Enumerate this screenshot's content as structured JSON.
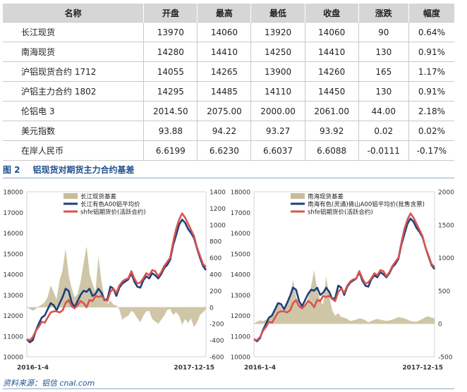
{
  "table": {
    "headers": [
      "名称",
      "开盘",
      "最高",
      "最低",
      "收盘",
      "涨跌",
      "幅度"
    ],
    "rows": [
      [
        "长江现货",
        "13970",
        "14060",
        "13920",
        "14060",
        "90",
        "0.64%"
      ],
      [
        "南海现货",
        "14280",
        "14410",
        "14250",
        "14410",
        "130",
        "0.91%"
      ],
      [
        "沪铝现货合约 1712",
        "14055",
        "14265",
        "13900",
        "14260",
        "165",
        "1.17%"
      ],
      [
        "沪铝主力合约 1802",
        "14295",
        "14485",
        "14110",
        "14450",
        "130",
        "0.91%"
      ],
      [
        "伦铝电 3",
        "2014.50",
        "2075.00",
        "2000.00",
        "2061.00",
        "44.00",
        "2.18%"
      ],
      [
        "美元指数",
        "93.88",
        "94.22",
        "93.27",
        "93.92",
        "0.02",
        "0.02%"
      ],
      [
        "在岸人民币",
        "6.6199",
        "6.6230",
        "6.6037",
        "6.6088",
        "-0.0111",
        "-0.17%"
      ]
    ]
  },
  "figure": {
    "number": "图 2",
    "title": "铝现货对期货主力合约基差"
  },
  "source": "资料来源：铝信 cnal.com",
  "colors": {
    "basis": "#c7bd98",
    "spot": "#1f3f7a",
    "futures": "#d9534f"
  },
  "chart_data": [
    {
      "type": "line",
      "legend": [
        "长江现货基差",
        "长江有色A00铝平均价",
        "shfe铝期货价(活跃合约)"
      ],
      "legend_position": "top-left",
      "x_start": "2016-1-4",
      "x_end": "2017-12-15",
      "left_axis": {
        "min": 10000,
        "max": 18000,
        "ticks": [
          10000,
          11000,
          12000,
          13000,
          14000,
          15000,
          16000,
          17000,
          18000
        ]
      },
      "right_axis": {
        "min": -600,
        "max": 1400,
        "ticks": [
          -600,
          -400,
          -200,
          0,
          200,
          400,
          600,
          800,
          1000,
          1200,
          1400
        ]
      },
      "series": [
        {
          "name": "长江现货基差",
          "kind": "area",
          "axis": "right",
          "values": [
            0,
            -20,
            -40,
            -20,
            10,
            30,
            60,
            120,
            260,
            180,
            90,
            320,
            450,
            700,
            380,
            230,
            120,
            160,
            300,
            520,
            730,
            400,
            280,
            180,
            600,
            300,
            120,
            40,
            80,
            30,
            20,
            -20,
            -150,
            -120,
            -100,
            -40,
            -70,
            -130,
            -180,
            -100,
            -50,
            -40,
            -140,
            -170,
            -200,
            -150,
            -100,
            -30,
            -20,
            -90,
            -60,
            -100,
            -210,
            -140,
            -190,
            -130,
            -240,
            -180,
            -90,
            -60,
            -20
          ]
        },
        {
          "name": "长江有色A00铝平均价",
          "kind": "line",
          "axis": "left",
          "values": [
            10850,
            10700,
            10800,
            11250,
            11600,
            11900,
            12000,
            12300,
            12600,
            12500,
            12250,
            12600,
            12900,
            13300,
            13200,
            12650,
            12400,
            12700,
            13000,
            13200,
            13150,
            13300,
            12950,
            13050,
            13300,
            13100,
            12750,
            12800,
            13400,
            13300,
            12950,
            13350,
            13550,
            13650,
            13750,
            14050,
            13650,
            13400,
            13350,
            13700,
            13900,
            13800,
            14050,
            13950,
            13800,
            14000,
            14300,
            14450,
            14700,
            15400,
            15900,
            16400,
            16650,
            16500,
            16200,
            16000,
            15750,
            15250,
            14800,
            14400,
            14200
          ]
        },
        {
          "name": "shfe铝期货价(活跃合约)",
          "kind": "line",
          "axis": "left",
          "values": [
            10850,
            10800,
            10950,
            11250,
            11450,
            11700,
            11650,
            11900,
            12150,
            12200,
            12200,
            12150,
            12250,
            12600,
            12750,
            12450,
            12350,
            12500,
            12700,
            12600,
            12400,
            12750,
            12700,
            12950,
            12900,
            12950,
            12800,
            12700,
            13150,
            13300,
            13100,
            13450,
            13650,
            13750,
            13800,
            14150,
            13800,
            13550,
            13600,
            13800,
            14050,
            13950,
            14200,
            14150,
            13900,
            14100,
            14400,
            14600,
            14800,
            15550,
            16200,
            16650,
            16950,
            16750,
            16450,
            16150,
            15850,
            15300,
            14900,
            14500,
            14350
          ]
        }
      ]
    },
    {
      "type": "line",
      "legend": [
        "南海现货基差",
        "南海有色(灵通)佛山A00铝平均价(批售含票)",
        "shfe铝期货价(活跃合约)"
      ],
      "legend_position": "top-left",
      "x_start": "2016-1-4",
      "x_end": "2017-12-15",
      "left_axis": {
        "min": 10000,
        "max": 18000,
        "ticks": [
          10000,
          11000,
          12000,
          13000,
          14000,
          15000,
          16000,
          17000,
          18000
        ]
      },
      "right_axis": {
        "min": -500,
        "max": 2000,
        "ticks": [
          -500,
          0,
          500,
          1000,
          1500,
          2000
        ]
      },
      "series": [
        {
          "name": "南海现货基差",
          "kind": "area",
          "axis": "right",
          "values": [
            0,
            30,
            50,
            40,
            60,
            90,
            150,
            220,
            320,
            250,
            170,
            330,
            450,
            650,
            400,
            300,
            250,
            280,
            380,
            560,
            800,
            500,
            350,
            280,
            700,
            400,
            200,
            120,
            160,
            100,
            90,
            70,
            40,
            50,
            60,
            80,
            70,
            50,
            20,
            40,
            60,
            70,
            60,
            50,
            40,
            50,
            60,
            80,
            100,
            90,
            80,
            60,
            40,
            30,
            30,
            50,
            70,
            100,
            110,
            90,
            80
          ]
        },
        {
          "name": "南海有色(灵通)佛山A00铝平均价(批售含票)",
          "kind": "line",
          "axis": "left",
          "values": [
            10850,
            10750,
            10900,
            11300,
            11600,
            11900,
            12000,
            12300,
            12600,
            12550,
            12300,
            12600,
            12950,
            13350,
            13250,
            12700,
            12450,
            12750,
            13050,
            13250,
            13200,
            13350,
            13000,
            13100,
            13350,
            13150,
            12800,
            12850,
            13450,
            13350,
            13000,
            13400,
            13600,
            13700,
            13800,
            14100,
            13700,
            13450,
            13400,
            13750,
            13950,
            13850,
            14100,
            14000,
            13850,
            14050,
            14350,
            14500,
            14750,
            15450,
            15950,
            16450,
            16700,
            16550,
            16250,
            16050,
            15800,
            15300,
            14850,
            14450,
            14250
          ]
        },
        {
          "name": "shfe铝期货价(活跃合约)",
          "kind": "line",
          "axis": "left",
          "values": [
            10850,
            10800,
            10950,
            11250,
            11450,
            11700,
            11650,
            11900,
            12150,
            12200,
            12200,
            12150,
            12250,
            12600,
            12750,
            12450,
            12350,
            12500,
            12700,
            12600,
            12400,
            12750,
            12700,
            12950,
            12900,
            12950,
            12800,
            12700,
            13150,
            13300,
            13100,
            13450,
            13650,
            13750,
            13800,
            14150,
            13800,
            13550,
            13600,
            13800,
            14050,
            13950,
            14200,
            14150,
            13900,
            14100,
            14400,
            14600,
            14800,
            15550,
            16200,
            16650,
            16950,
            16750,
            16450,
            16150,
            15850,
            15300,
            14900,
            14500,
            14350
          ]
        }
      ]
    }
  ]
}
